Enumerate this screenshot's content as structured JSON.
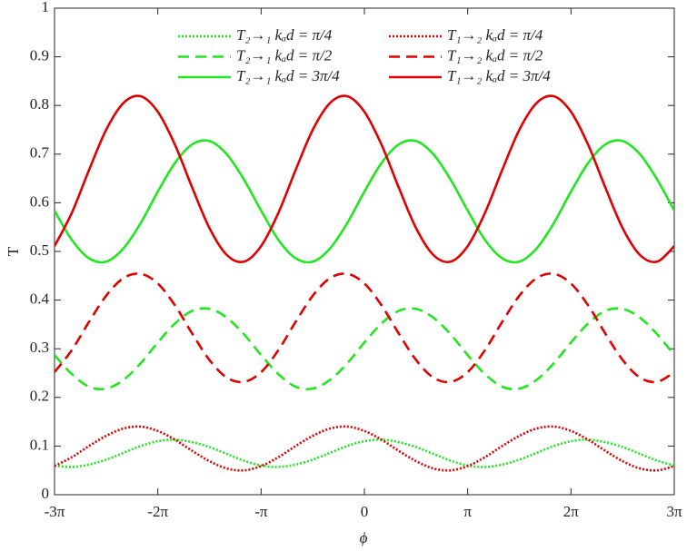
{
  "chart_data": {
    "type": "line",
    "xlabel": "ϕ",
    "ylabel": "T",
    "x": [
      -9.4248,
      -8.9012,
      -8.3776,
      -7.854,
      -7.3304,
      -6.8068,
      -6.2832,
      -5.7596,
      -5.236,
      -4.7124,
      -4.1888,
      -3.6652,
      -3.1416,
      -2.618,
      -2.0944,
      -1.5708,
      -1.0472,
      -0.5236,
      0,
      0.5236,
      1.0472,
      1.5708,
      2.0944,
      2.618,
      3.1416,
      3.6652,
      4.1888,
      4.7124,
      5.236,
      5.7596,
      6.2832,
      6.8068,
      7.3304,
      7.854,
      8.3776,
      8.9012,
      9.4248
    ],
    "series": [
      {
        "name": "T₂→₁ kₐd = π/4",
        "color": "#22e622",
        "linestyle": "dotted",
        "values": [
          0.06,
          0.057,
          0.062,
          0.072,
          0.086,
          0.1,
          0.11,
          0.113,
          0.108,
          0.098,
          0.084,
          0.07,
          0.06,
          0.057,
          0.062,
          0.072,
          0.086,
          0.1,
          0.11,
          0.113,
          0.108,
          0.098,
          0.084,
          0.07,
          0.06,
          0.057,
          0.062,
          0.072,
          0.086,
          0.1,
          0.11,
          0.113,
          0.108,
          0.098,
          0.084,
          0.07,
          0.06
        ]
      },
      {
        "name": "T₂→₁ kₐd = π/2",
        "color": "#22e622",
        "linestyle": "dashed",
        "values": [
          0.287,
          0.248,
          0.222,
          0.218,
          0.236,
          0.27,
          0.313,
          0.352,
          0.378,
          0.382,
          0.364,
          0.33,
          0.287,
          0.248,
          0.222,
          0.218,
          0.236,
          0.27,
          0.313,
          0.352,
          0.378,
          0.382,
          0.364,
          0.33,
          0.287,
          0.248,
          0.222,
          0.218,
          0.236,
          0.27,
          0.313,
          0.352,
          0.378,
          0.382,
          0.364,
          0.33,
          0.287
        ]
      },
      {
        "name": "T₂→₁ kₐd = 3π/4",
        "color": "#22e622",
        "linestyle": "solid",
        "values": [
          0.584,
          0.524,
          0.486,
          0.479,
          0.506,
          0.558,
          0.623,
          0.682,
          0.72,
          0.727,
          0.7,
          0.648,
          0.584,
          0.524,
          0.486,
          0.479,
          0.506,
          0.558,
          0.623,
          0.682,
          0.72,
          0.727,
          0.7,
          0.648,
          0.584,
          0.524,
          0.486,
          0.479,
          0.506,
          0.558,
          0.623,
          0.682,
          0.72,
          0.727,
          0.7,
          0.648,
          0.584
        ]
      },
      {
        "name": "T₁→₂ kₐd = π/4",
        "color": "#e00000",
        "linestyle": "dotted",
        "values": [
          0.059,
          0.077,
          0.1,
          0.121,
          0.136,
          0.14,
          0.131,
          0.113,
          0.09,
          0.069,
          0.054,
          0.05,
          0.059,
          0.077,
          0.1,
          0.121,
          0.136,
          0.14,
          0.131,
          0.113,
          0.09,
          0.069,
          0.054,
          0.05,
          0.059,
          0.077,
          0.1,
          0.121,
          0.136,
          0.14,
          0.131,
          0.113,
          0.09,
          0.069,
          0.054,
          0.05,
          0.059
        ]
      },
      {
        "name": "T₁→₂ kₐd = π/2",
        "color": "#e00000",
        "linestyle": "dashed",
        "values": [
          0.252,
          0.297,
          0.355,
          0.409,
          0.445,
          0.454,
          0.434,
          0.389,
          0.331,
          0.277,
          0.241,
          0.232,
          0.252,
          0.297,
          0.355,
          0.409,
          0.445,
          0.454,
          0.434,
          0.389,
          0.331,
          0.277,
          0.241,
          0.232,
          0.252,
          0.297,
          0.355,
          0.409,
          0.445,
          0.454,
          0.434,
          0.389,
          0.331,
          0.277,
          0.241,
          0.232,
          0.252
        ]
      },
      {
        "name": "T₁→₂ kₐd = 3π/4",
        "color": "#e00000",
        "linestyle": "solid",
        "values": [
          0.511,
          0.579,
          0.667,
          0.75,
          0.805,
          0.819,
          0.787,
          0.719,
          0.631,
          0.548,
          0.493,
          0.479,
          0.511,
          0.579,
          0.667,
          0.75,
          0.805,
          0.819,
          0.787,
          0.719,
          0.631,
          0.548,
          0.493,
          0.479,
          0.511,
          0.579,
          0.667,
          0.75,
          0.805,
          0.819,
          0.787,
          0.719,
          0.631,
          0.548,
          0.493,
          0.479,
          0.511
        ]
      }
    ],
    "xlim": [
      -9.4248,
      9.4248
    ],
    "xticks": [
      {
        "value": -9.4248,
        "label": "-3π"
      },
      {
        "value": -6.2832,
        "label": "-2π"
      },
      {
        "value": -3.1416,
        "label": "-π"
      },
      0,
      {
        "value": 3.1416,
        "label": "π"
      },
      {
        "value": 6.2832,
        "label": "2π"
      },
      {
        "value": 9.4248,
        "label": "3π"
      }
    ],
    "ylim": [
      0,
      1
    ],
    "yticks": [
      0,
      0.1,
      0.2,
      0.3,
      0.4,
      0.5,
      0.6,
      0.7,
      0.8,
      0.9,
      1
    ],
    "grid": false,
    "legend": "top"
  }
}
